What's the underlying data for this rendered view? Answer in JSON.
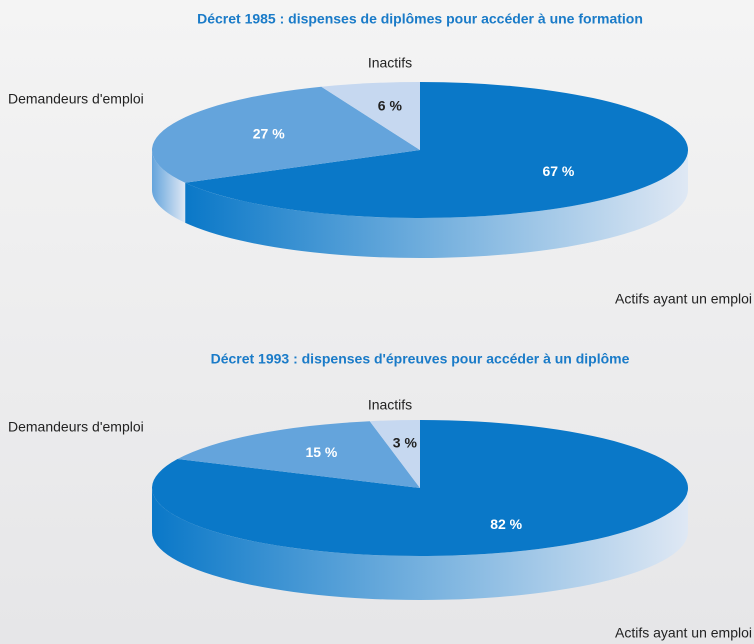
{
  "chart_data": [
    {
      "type": "pie",
      "title": "Décret 1985 : dispenses de diplômes pour accéder à une formation",
      "categories": [
        "Actifs ayant un emploi",
        "Demandeurs d'emploi",
        "Inactifs"
      ],
      "values": [
        67,
        27,
        6
      ],
      "value_labels": [
        "67 %",
        "27 %",
        "6 %"
      ],
      "colors": [
        "#0a78c8",
        "#64a4dc",
        "#c6d8f0"
      ]
    },
    {
      "type": "pie",
      "title": "Décret 1993 : dispenses d'épreuves pour accéder à un diplôme",
      "categories": [
        "Actifs ayant un emploi",
        "Demandeurs d'emploi",
        "Inactifs"
      ],
      "values": [
        82,
        15,
        3
      ],
      "value_labels": [
        "82 %",
        "15 %",
        "3 %"
      ],
      "colors": [
        "#0a78c8",
        "#64a4dc",
        "#c6d8f0"
      ]
    }
  ]
}
